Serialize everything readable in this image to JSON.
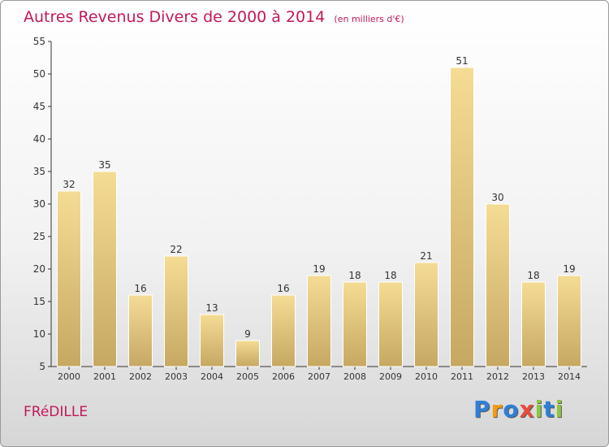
{
  "header": {
    "title": "Autres Revenus Divers de 2000 à 2014",
    "unit": "(en milliers d'€)"
  },
  "footer": {
    "city": "FRéDILLE",
    "logo": "Proxiti",
    "logo_colors": [
      "#2e7fd6",
      "#f39c12",
      "#2e7fd6",
      "#e74c3c",
      "#8dc63f",
      "#2e7fd6",
      "#8dc63f"
    ]
  },
  "colors": {
    "bar_light": "#f5dc94",
    "bar_dark": "#c6a862",
    "title": "#c2185b",
    "axis": "#333333"
  },
  "chart_data": {
    "type": "bar",
    "categories": [
      "2000",
      "2001",
      "2002",
      "2003",
      "2004",
      "2005",
      "2006",
      "2007",
      "2008",
      "2009",
      "2010",
      "2011",
      "2012",
      "2013",
      "2014"
    ],
    "values": [
      32,
      35,
      16,
      22,
      13,
      9,
      16,
      19,
      18,
      18,
      21,
      51,
      30,
      18,
      19
    ],
    "title": "Autres Revenus Divers de 2000 à 2014",
    "xlabel": "",
    "ylabel": "",
    "ylim": [
      5,
      55
    ],
    "yticks": [
      5,
      10,
      15,
      20,
      25,
      30,
      35,
      40,
      45,
      50,
      55
    ],
    "grid": false,
    "legend": "none"
  }
}
